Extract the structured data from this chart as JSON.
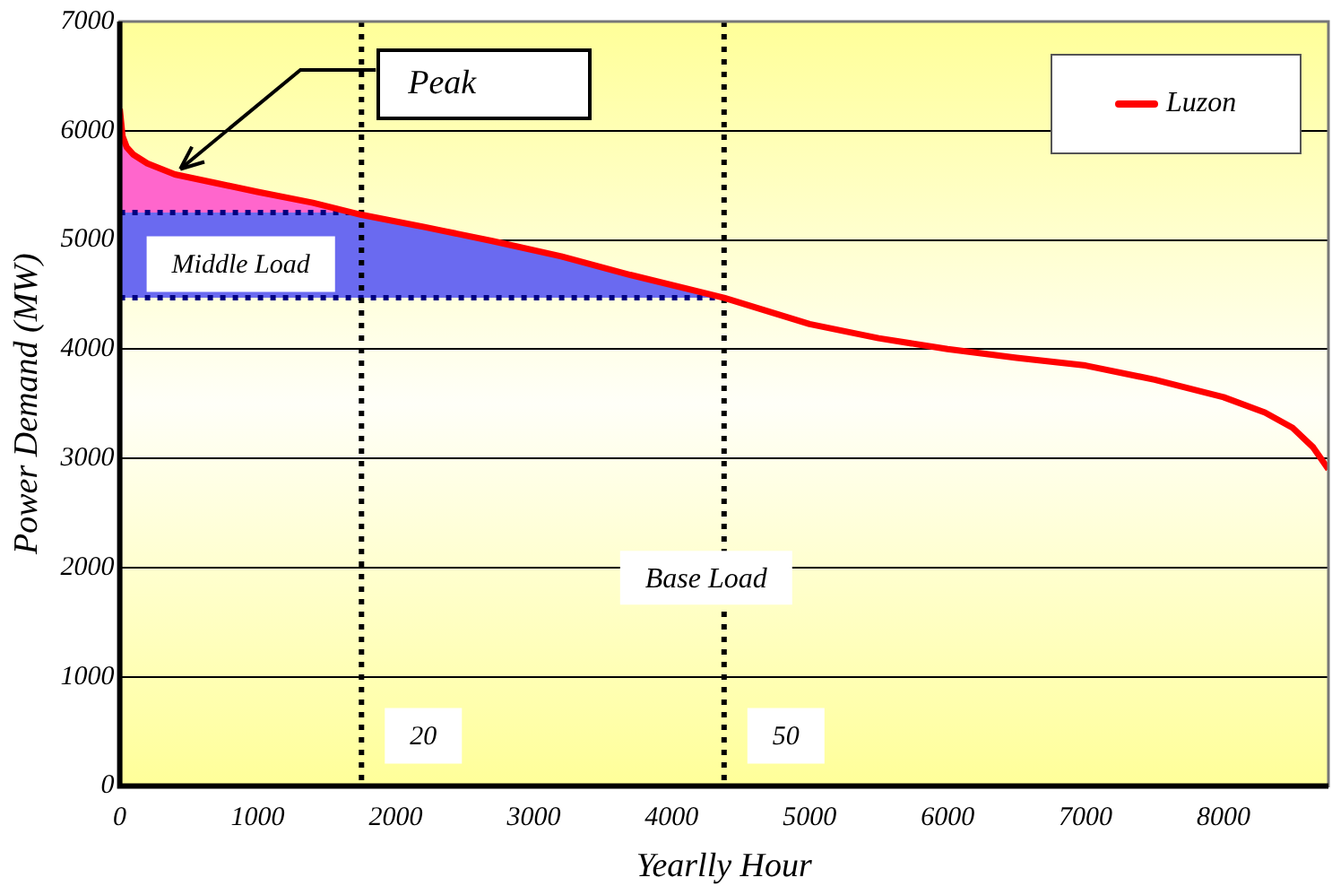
{
  "chart_data": {
    "type": "line",
    "xlabel": "Yearlly Hour",
    "ylabel": "Power Demand (MW)",
    "x": [
      0,
      20,
      50,
      100,
      200,
      400,
      700,
      1000,
      1400,
      1752,
      2200,
      2700,
      3200,
      3700,
      4380,
      5000,
      5500,
      6000,
      6500,
      7000,
      7500,
      8000,
      8300,
      8500,
      8650,
      8760
    ],
    "series": [
      {
        "name": "Luzon",
        "color": "#ff0000",
        "values": [
          6200,
          5950,
          5850,
          5780,
          5700,
          5600,
          5520,
          5440,
          5340,
          5230,
          5120,
          4990,
          4850,
          4680,
          4470,
          4230,
          4100,
          4000,
          3920,
          3850,
          3720,
          3560,
          3420,
          3280,
          3100,
          2900
        ]
      }
    ],
    "xlim": [
      0,
      8760
    ],
    "xticks": [
      0,
      1000,
      2000,
      3000,
      4000,
      5000,
      6000,
      7000,
      8000
    ],
    "ylim": [
      0,
      7000
    ],
    "yticks": [
      0,
      1000,
      2000,
      3000,
      4000,
      5000,
      6000,
      7000
    ],
    "grid": "y",
    "legend": "top right",
    "marker": "none",
    "line_style": "solid",
    "bands": [
      {
        "axis": "y",
        "from": 5250,
        "to": 6200,
        "label": null,
        "color": "#ff66cc"
      },
      {
        "axis": "y",
        "from": 4470,
        "to": 5250,
        "label": "Middle Load",
        "color": "#6a6af0"
      }
    ],
    "ref_lines": [
      {
        "axis": "y",
        "value": 5250,
        "label": null,
        "line_style": "dotted",
        "color": "#000080"
      },
      {
        "axis": "y",
        "value": 4470,
        "label": null,
        "line_style": "dotted",
        "color": "#000080"
      },
      {
        "axis": "x",
        "value": 1752,
        "label": null,
        "line_style": "dotted",
        "color": "#000000"
      },
      {
        "axis": "x",
        "value": 4380,
        "label": null,
        "line_style": "dotted",
        "color": "#000000"
      }
    ],
    "annotations": [
      {
        "text": "Peak",
        "x": 400,
        "y": 5600
      },
      "Base Load",
      "20",
      "50"
    ]
  }
}
